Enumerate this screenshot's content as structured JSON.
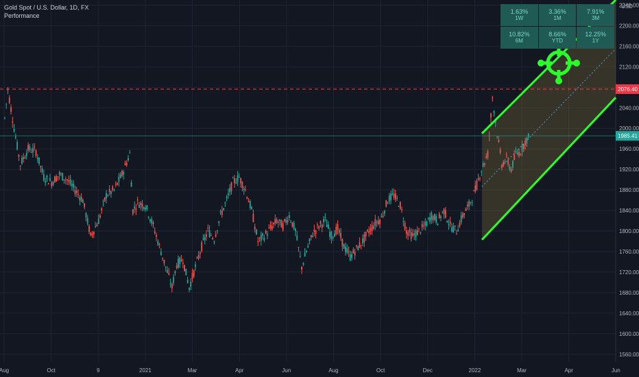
{
  "header": {
    "title": "Gold Spot / U.S. Dollar, 1D, FX",
    "subtitle": "Performance"
  },
  "performance": [
    {
      "value": "1.63%",
      "period": "1W"
    },
    {
      "value": "3.36%",
      "period": "1M"
    },
    {
      "value": "7.91%",
      "period": "3M"
    },
    {
      "value": "10.82%",
      "period": "6M"
    },
    {
      "value": "8.66%",
      "period": "YTD"
    },
    {
      "value": "12.25%",
      "period": "1Y"
    }
  ],
  "colors": {
    "background": "#131722",
    "grid": "#1f2431",
    "up": "#26a69a",
    "down": "#ef5350",
    "channel": "#2bff2b",
    "resistance": "#ff3b3b",
    "price_tag": "#26a69a",
    "resistance_tag": "#f23645"
  },
  "chart_data": {
    "type": "candlestick",
    "currency_label": "USD",
    "y_ticks": [
      1560,
      1600,
      1640,
      1680,
      1720,
      1760,
      1800,
      1840,
      1880,
      1920,
      1960,
      2000,
      2040,
      2080,
      2120,
      2160,
      2200,
      2240
    ],
    "x_ticks": [
      "Aug",
      "Oct",
      "9",
      "2021",
      "Mar",
      "Apr",
      "Jun",
      "Aug",
      "Oct",
      "Dec",
      "2022",
      "Mar",
      "Apr",
      "Jun"
    ],
    "ylim": [
      1545,
      2250
    ],
    "resistance_level": "2076.40",
    "last_price": "1985.41",
    "price_path": [
      [
        0,
        2020
      ],
      [
        2,
        2076
      ],
      [
        6,
        2000
      ],
      [
        10,
        1930
      ],
      [
        15,
        1960
      ],
      [
        20,
        1955
      ],
      [
        25,
        1905
      ],
      [
        30,
        1895
      ],
      [
        35,
        1910
      ],
      [
        40,
        1900
      ],
      [
        45,
        1880
      ],
      [
        50,
        1860
      ],
      [
        55,
        1790
      ],
      [
        60,
        1820
      ],
      [
        65,
        1870
      ],
      [
        70,
        1880
      ],
      [
        75,
        1910
      ],
      [
        80,
        1950
      ],
      [
        82,
        1840
      ],
      [
        85,
        1855
      ],
      [
        90,
        1850
      ],
      [
        95,
        1810
      ],
      [
        100,
        1760
      ],
      [
        103,
        1730
      ],
      [
        107,
        1690
      ],
      [
        110,
        1735
      ],
      [
        114,
        1745
      ],
      [
        118,
        1690
      ],
      [
        122,
        1730
      ],
      [
        126,
        1770
      ],
      [
        130,
        1800
      ],
      [
        134,
        1785
      ],
      [
        138,
        1830
      ],
      [
        142,
        1860
      ],
      [
        146,
        1895
      ],
      [
        150,
        1905
      ],
      [
        154,
        1880
      ],
      [
        158,
        1840
      ],
      [
        162,
        1780
      ],
      [
        166,
        1790
      ],
      [
        170,
        1805
      ],
      [
        174,
        1820
      ],
      [
        178,
        1810
      ],
      [
        182,
        1830
      ],
      [
        186,
        1800
      ],
      [
        190,
        1730
      ],
      [
        193,
        1760
      ],
      [
        197,
        1795
      ],
      [
        201,
        1810
      ],
      [
        205,
        1820
      ],
      [
        209,
        1790
      ],
      [
        213,
        1805
      ],
      [
        217,
        1770
      ],
      [
        221,
        1750
      ],
      [
        225,
        1765
      ],
      [
        229,
        1780
      ],
      [
        233,
        1800
      ],
      [
        237,
        1815
      ],
      [
        241,
        1825
      ],
      [
        245,
        1860
      ],
      [
        249,
        1870
      ],
      [
        253,
        1850
      ],
      [
        257,
        1800
      ],
      [
        261,
        1790
      ],
      [
        265,
        1800
      ],
      [
        269,
        1810
      ],
      [
        273,
        1830
      ],
      [
        277,
        1820
      ],
      [
        281,
        1840
      ],
      [
        285,
        1810
      ],
      [
        289,
        1800
      ],
      [
        293,
        1830
      ],
      [
        297,
        1850
      ],
      [
        301,
        1880
      ],
      [
        305,
        1920
      ],
      [
        309,
        1950
      ],
      [
        312,
        2060
      ],
      [
        315,
        1990
      ],
      [
        318,
        1930
      ],
      [
        321,
        1940
      ],
      [
        324,
        1920
      ],
      [
        327,
        1950
      ],
      [
        330,
        1955
      ],
      [
        333,
        1975
      ],
      [
        336,
        1985
      ]
    ]
  }
}
